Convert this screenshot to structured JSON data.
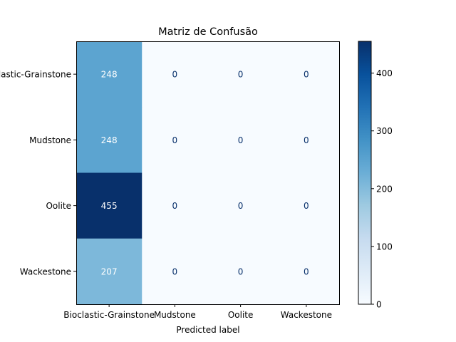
{
  "chart_data": {
    "type": "heatmap",
    "title": "Matriz de Confusão",
    "xlabel": "Predicted label",
    "ylabel": "",
    "row_labels": [
      "Bioclastic-Grainstone",
      "Mudstone",
      "Oolite",
      "Wackestone"
    ],
    "col_labels": [
      "Bioclastic-Grainstone",
      "Mudstone",
      "Oolite",
      "Wackestone"
    ],
    "values": [
      [
        248,
        0,
        0,
        0
      ],
      [
        248,
        0,
        0,
        0
      ],
      [
        455,
        0,
        0,
        0
      ],
      [
        207,
        0,
        0,
        0
      ]
    ],
    "colormap": "Blues",
    "colorbar": {
      "min": 0,
      "max": 455,
      "ticks": [
        0,
        100,
        200,
        300,
        400
      ]
    }
  }
}
